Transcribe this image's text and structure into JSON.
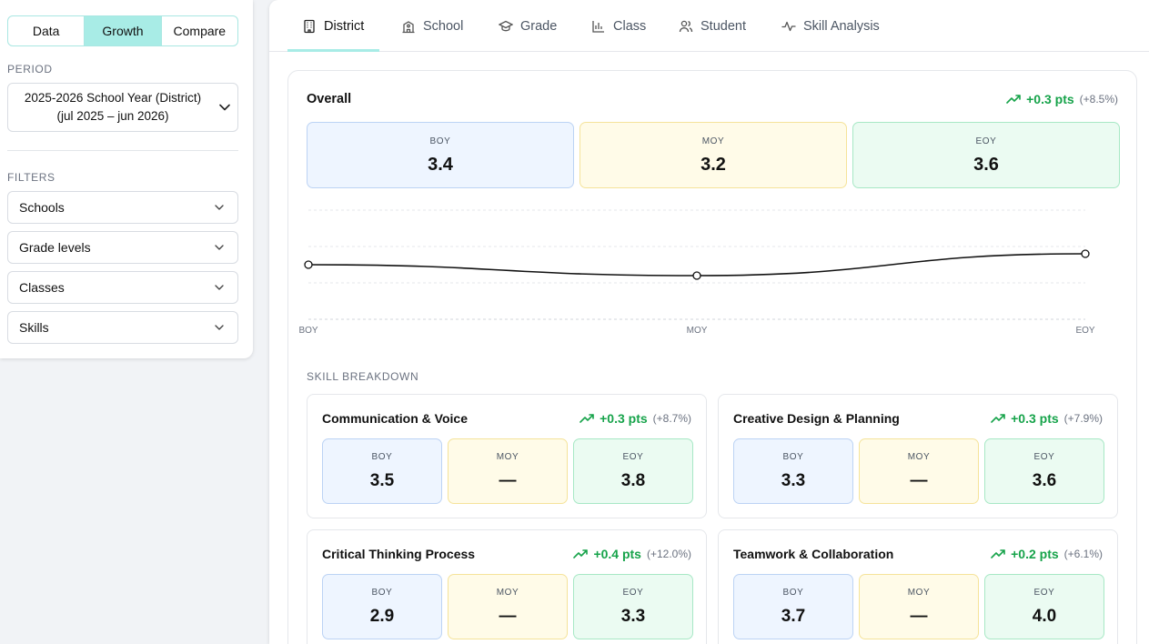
{
  "sidebar": {
    "modes": [
      {
        "label": "Data",
        "active": false
      },
      {
        "label": "Growth",
        "active": true
      },
      {
        "label": "Compare",
        "active": false
      }
    ],
    "period_label": "PERIOD",
    "period_line1": "2025-2026 School Year (District)",
    "period_line2": "(jul 2025 – jun 2026)",
    "filters_label": "FILTERS",
    "filters": [
      "Schools",
      "Grade levels",
      "Classes",
      "Skills"
    ]
  },
  "tabs": [
    {
      "label": "District",
      "icon": "building-icon",
      "active": true
    },
    {
      "label": "School",
      "icon": "school-icon",
      "active": false
    },
    {
      "label": "Grade",
      "icon": "graduation-cap-icon",
      "active": false
    },
    {
      "label": "Class",
      "icon": "bar-chart-icon",
      "active": false
    },
    {
      "label": "Student",
      "icon": "users-icon",
      "active": false
    },
    {
      "label": "Skill Analysis",
      "icon": "activity-icon",
      "active": false
    }
  ],
  "overall": {
    "title": "Overall",
    "delta_pts": "+0.3 pts",
    "delta_pct": "(+8.5%)",
    "tiles": [
      {
        "label": "BOY",
        "value": "3.4"
      },
      {
        "label": "MOY",
        "value": "3.2"
      },
      {
        "label": "EOY",
        "value": "3.6"
      }
    ]
  },
  "chart_data": {
    "type": "line",
    "categories": [
      "BOY",
      "MOY",
      "EOY"
    ],
    "values": [
      3.4,
      3.2,
      3.6
    ],
    "title": "",
    "xlabel": "",
    "ylabel": "",
    "grid": true,
    "line_color": "#111111"
  },
  "breakdown": {
    "label": "SKILL BREAKDOWN",
    "skills": [
      {
        "name": "Communication & Voice",
        "delta_pts": "+0.3 pts",
        "delta_pct": "(+8.7%)",
        "boy": "3.5",
        "moy": "—",
        "eoy": "3.8"
      },
      {
        "name": "Creative Design & Planning",
        "delta_pts": "+0.3 pts",
        "delta_pct": "(+7.9%)",
        "boy": "3.3",
        "moy": "—",
        "eoy": "3.6"
      },
      {
        "name": "Critical Thinking Process",
        "delta_pts": "+0.4 pts",
        "delta_pct": "(+12.0%)",
        "boy": "2.9",
        "moy": "—",
        "eoy": "3.3"
      },
      {
        "name": "Teamwork & Collaboration",
        "delta_pts": "+0.2 pts",
        "delta_pct": "(+6.1%)",
        "boy": "3.7",
        "moy": "—",
        "eoy": "4.0"
      }
    ],
    "tile_labels": {
      "boy": "BOY",
      "moy": "MOY",
      "eoy": "EOY"
    }
  },
  "colors": {
    "accent": "#a8ece6",
    "positive": "#16a34a",
    "boy_bg": "#eef5ff",
    "moy_bg": "#fffbe8",
    "eoy_bg": "#ebfbf2"
  }
}
